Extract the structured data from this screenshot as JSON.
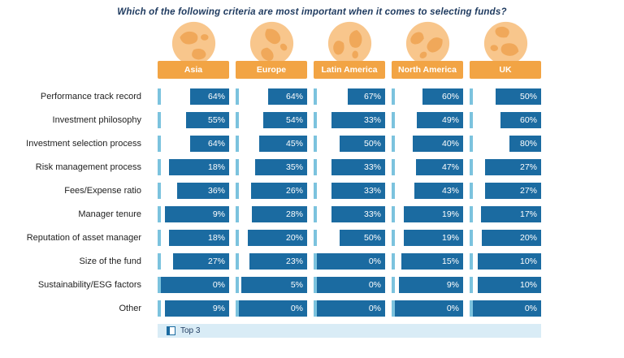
{
  "title": "Which of the following criteria are most important when it comes to selecting funds?",
  "legend": {
    "label": "Top 3"
  },
  "chart_data": {
    "type": "bar",
    "title": "Which of the following criteria are most important when it comes to selecting funds?",
    "unit": "%",
    "legend": [
      "Top 3"
    ],
    "legend_position": "bottom-left",
    "value_range": [
      0,
      100
    ],
    "categories": [
      "Performance track record",
      "Investment philosophy",
      "Investment selection process",
      "Risk management process",
      "Fees/Expense ratio",
      "Manager tenure",
      "Reputation of asset manager",
      "Size of the fund",
      "Sustainability/ESG factors",
      "Other"
    ],
    "series": [
      {
        "name": "Asia",
        "values": [
          64,
          55,
          64,
          18,
          36,
          9,
          18,
          27,
          0,
          9
        ]
      },
      {
        "name": "Europe",
        "values": [
          64,
          54,
          45,
          35,
          26,
          28,
          20,
          23,
          5,
          0
        ]
      },
      {
        "name": "Latin America",
        "values": [
          67,
          33,
          50,
          33,
          33,
          33,
          50,
          0,
          0,
          0
        ]
      },
      {
        "name": "North America",
        "values": [
          60,
          49,
          40,
          47,
          43,
          19,
          19,
          15,
          9,
          0
        ]
      },
      {
        "name": "UK",
        "values": [
          50,
          60,
          80,
          27,
          27,
          17,
          20,
          10,
          10,
          0
        ]
      }
    ]
  },
  "colors": {
    "header_orange": "#f2a444",
    "globe_orange": "#f8c68c",
    "globe_land_orange": "#f0a85a",
    "bar_dark_blue": "#1b6ba1",
    "bar_marker_light_blue": "#7cc3de",
    "bar_fill_white": "#ffffff",
    "legend_strip": "#d9ecf6",
    "title_navy": "#1e3a5f"
  }
}
